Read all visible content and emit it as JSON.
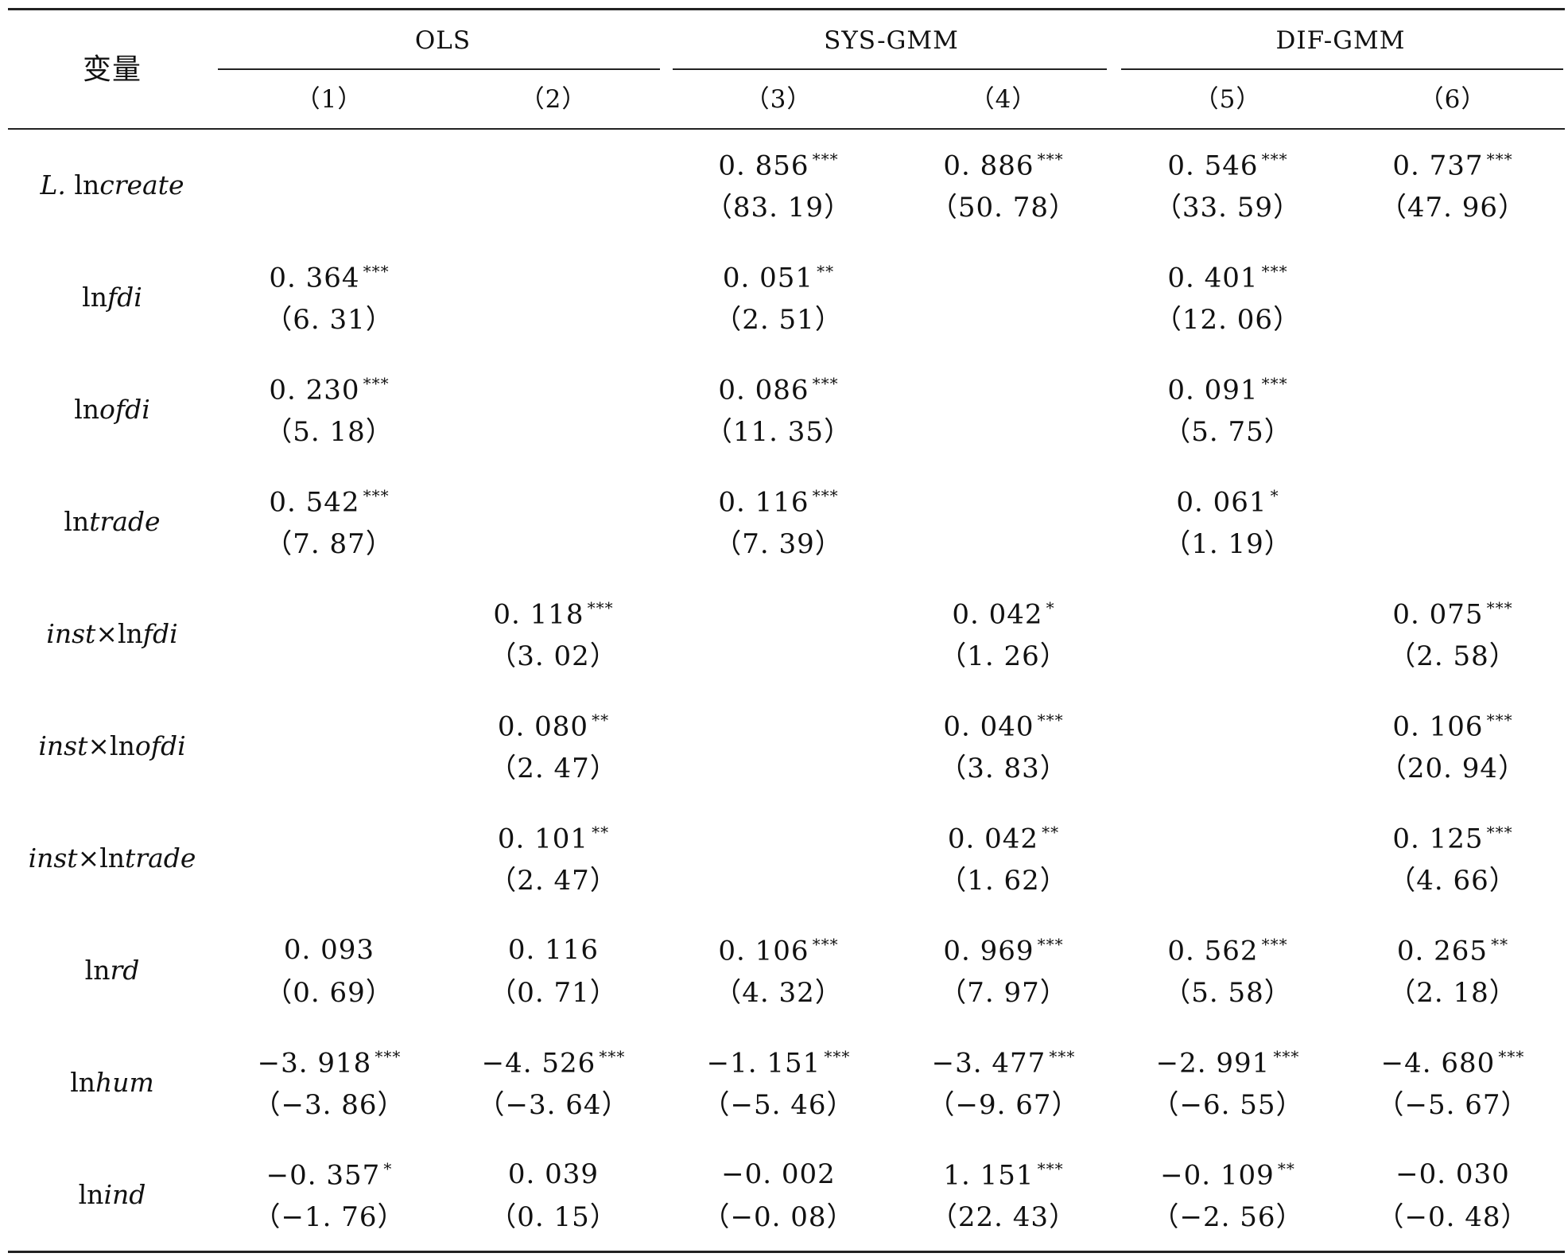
{
  "header": {
    "variable_label": "变量",
    "groups": [
      "OLS",
      "SYS-GMM",
      "DIF-GMM"
    ],
    "columns": [
      "（1）",
      "（2）",
      "（3）",
      "（4）",
      "（5）",
      "（6）"
    ]
  },
  "rows": [
    {
      "name_parts": [
        {
          "text": "L.",
          "italic": true
        },
        {
          "text": " ln",
          "italic": false
        },
        {
          "text": "create",
          "italic": true
        }
      ],
      "cells": [
        null,
        null,
        {
          "coef": "0. 856",
          "sig": "***",
          "t": "（83. 19）"
        },
        {
          "coef": "0. 886",
          "sig": "***",
          "t": "（50. 78）"
        },
        {
          "coef": "0. 546",
          "sig": "***",
          "t": "（33. 59）"
        },
        {
          "coef": "0. 737",
          "sig": "***",
          "t": "（47. 96）"
        }
      ]
    },
    {
      "name_parts": [
        {
          "text": "ln",
          "italic": false
        },
        {
          "text": "fdi",
          "italic": true
        }
      ],
      "cells": [
        {
          "coef": "0. 364",
          "sig": "***",
          "t": "（6. 31）"
        },
        null,
        {
          "coef": "0. 051",
          "sig": "**",
          "t": "（2. 51）"
        },
        null,
        {
          "coef": "0. 401",
          "sig": "***",
          "t": "（12. 06）"
        },
        null
      ]
    },
    {
      "name_parts": [
        {
          "text": "ln",
          "italic": false
        },
        {
          "text": "ofdi",
          "italic": true
        }
      ],
      "cells": [
        {
          "coef": "0. 230",
          "sig": "***",
          "t": "（5. 18）"
        },
        null,
        {
          "coef": "0. 086",
          "sig": "***",
          "t": "（11. 35）"
        },
        null,
        {
          "coef": "0. 091",
          "sig": "***",
          "t": "（5. 75）"
        },
        null
      ]
    },
    {
      "name_parts": [
        {
          "text": "ln",
          "italic": false
        },
        {
          "text": "trade",
          "italic": true
        }
      ],
      "cells": [
        {
          "coef": "0. 542",
          "sig": "***",
          "t": "（7. 87）"
        },
        null,
        {
          "coef": "0. 116",
          "sig": "***",
          "t": "（7. 39）"
        },
        null,
        {
          "coef": "0. 061",
          "sig": "*",
          "t": "（1. 19）"
        },
        null
      ]
    },
    {
      "name_parts": [
        {
          "text": "inst",
          "italic": true
        },
        {
          "text": "×ln",
          "italic": false
        },
        {
          "text": "fdi",
          "italic": true
        }
      ],
      "cells": [
        null,
        {
          "coef": "0. 118",
          "sig": "***",
          "t": "（3. 02）"
        },
        null,
        {
          "coef": "0. 042",
          "sig": "*",
          "t": "（1. 26）"
        },
        null,
        {
          "coef": "0. 075",
          "sig": "***",
          "t": "（2. 58）"
        }
      ]
    },
    {
      "name_parts": [
        {
          "text": "inst",
          "italic": true
        },
        {
          "text": "×ln",
          "italic": false
        },
        {
          "text": "ofdi",
          "italic": true
        }
      ],
      "cells": [
        null,
        {
          "coef": "0. 080",
          "sig": "**",
          "t": "（2. 47）"
        },
        null,
        {
          "coef": "0. 040",
          "sig": "***",
          "t": "（3. 83）"
        },
        null,
        {
          "coef": "0. 106",
          "sig": "***",
          "t": "（20. 94）"
        }
      ]
    },
    {
      "name_parts": [
        {
          "text": "inst",
          "italic": true
        },
        {
          "text": "×ln",
          "italic": false
        },
        {
          "text": "trade",
          "italic": true
        }
      ],
      "cells": [
        null,
        {
          "coef": "0. 101",
          "sig": "**",
          "t": "（2. 47）"
        },
        null,
        {
          "coef": "0. 042",
          "sig": "**",
          "t": "（1. 62）"
        },
        null,
        {
          "coef": "0. 125",
          "sig": "***",
          "t": "（4. 66）"
        }
      ]
    },
    {
      "name_parts": [
        {
          "text": "ln",
          "italic": false
        },
        {
          "text": "rd",
          "italic": true
        }
      ],
      "cells": [
        {
          "coef": "0. 093",
          "sig": "",
          "t": "（0. 69）"
        },
        {
          "coef": "0. 116",
          "sig": "",
          "t": "（0. 71）"
        },
        {
          "coef": "0. 106",
          "sig": "***",
          "t": "（4. 32）"
        },
        {
          "coef": "0. 969",
          "sig": "***",
          "t": "（7. 97）"
        },
        {
          "coef": "0. 562",
          "sig": "***",
          "t": "（5. 58）"
        },
        {
          "coef": "0. 265",
          "sig": "**",
          "t": "（2. 18）"
        }
      ]
    },
    {
      "name_parts": [
        {
          "text": "ln",
          "italic": false
        },
        {
          "text": "hum",
          "italic": true
        }
      ],
      "cells": [
        {
          "coef": "−3. 918",
          "sig": "***",
          "t": "（−3. 86）"
        },
        {
          "coef": "−4. 526",
          "sig": "***",
          "t": "（−3. 64）"
        },
        {
          "coef": "−1. 151",
          "sig": "***",
          "t": "（−5. 46）"
        },
        {
          "coef": "−3. 477",
          "sig": "***",
          "t": "（−9. 67）"
        },
        {
          "coef": "−2. 991",
          "sig": "***",
          "t": "（−6. 55）"
        },
        {
          "coef": "−4. 680",
          "sig": "***",
          "t": "（−5. 67）"
        }
      ]
    },
    {
      "name_parts": [
        {
          "text": "ln",
          "italic": false
        },
        {
          "text": "ind",
          "italic": true
        }
      ],
      "cells": [
        {
          "coef": "−0. 357",
          "sig": "*",
          "t": "（−1. 76）"
        },
        {
          "coef": "0. 039",
          "sig": "",
          "t": "（0. 15）"
        },
        {
          "coef": "−0. 002",
          "sig": "",
          "t": "（−0. 08）"
        },
        {
          "coef": "1. 151",
          "sig": "***",
          "t": "（22. 43）"
        },
        {
          "coef": "−0. 109",
          "sig": "**",
          "t": "（−2. 56）"
        },
        {
          "coef": "−0. 030",
          "sig": "",
          "t": "（−0. 48）"
        }
      ]
    }
  ]
}
